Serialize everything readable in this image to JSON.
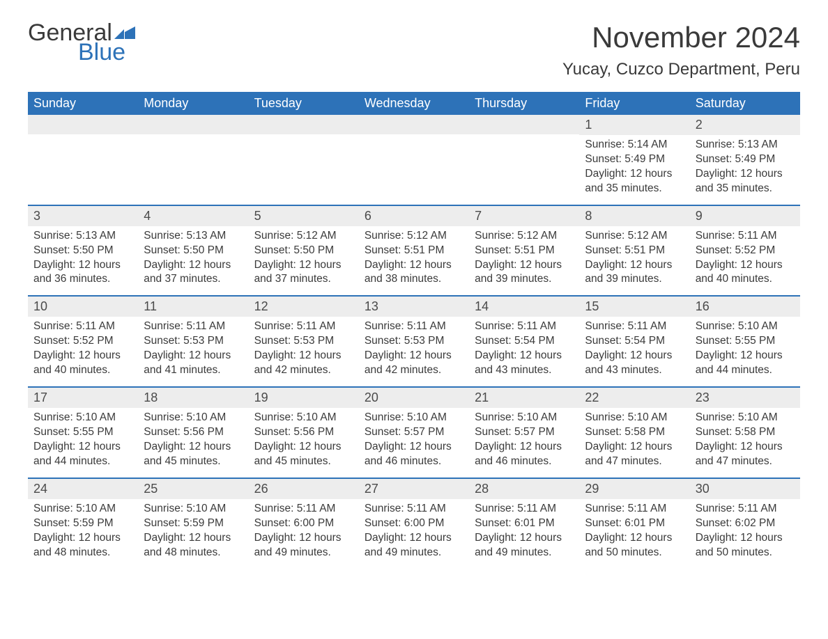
{
  "logo": {
    "text1": "General",
    "text2": "Blue",
    "flag_color": "#2d72b8"
  },
  "title": "November 2024",
  "location": "Yucay, Cuzco Department, Peru",
  "colors": {
    "header_bg": "#2d72b8",
    "header_text": "#ffffff",
    "daynum_bg": "#ededed",
    "week_border": "#2d72b8",
    "text": "#3a3a3a"
  },
  "typography": {
    "title_fontsize": 42,
    "location_fontsize": 24,
    "dayheader_fontsize": 18,
    "daynum_fontsize": 18,
    "info_fontsize": 15.5
  },
  "day_headers": [
    "Sunday",
    "Monday",
    "Tuesday",
    "Wednesday",
    "Thursday",
    "Friday",
    "Saturday"
  ],
  "labels": {
    "sunrise": "Sunrise:",
    "sunset": "Sunset:",
    "daylight": "Daylight:"
  },
  "weeks": [
    [
      {
        "empty": true
      },
      {
        "empty": true
      },
      {
        "empty": true
      },
      {
        "empty": true
      },
      {
        "empty": true
      },
      {
        "day": "1",
        "sunrise": "5:14 AM",
        "sunset": "5:49 PM",
        "daylight": "12 hours and 35 minutes."
      },
      {
        "day": "2",
        "sunrise": "5:13 AM",
        "sunset": "5:49 PM",
        "daylight": "12 hours and 35 minutes."
      }
    ],
    [
      {
        "day": "3",
        "sunrise": "5:13 AM",
        "sunset": "5:50 PM",
        "daylight": "12 hours and 36 minutes."
      },
      {
        "day": "4",
        "sunrise": "5:13 AM",
        "sunset": "5:50 PM",
        "daylight": "12 hours and 37 minutes."
      },
      {
        "day": "5",
        "sunrise": "5:12 AM",
        "sunset": "5:50 PM",
        "daylight": "12 hours and 37 minutes."
      },
      {
        "day": "6",
        "sunrise": "5:12 AM",
        "sunset": "5:51 PM",
        "daylight": "12 hours and 38 minutes."
      },
      {
        "day": "7",
        "sunrise": "5:12 AM",
        "sunset": "5:51 PM",
        "daylight": "12 hours and 39 minutes."
      },
      {
        "day": "8",
        "sunrise": "5:12 AM",
        "sunset": "5:51 PM",
        "daylight": "12 hours and 39 minutes."
      },
      {
        "day": "9",
        "sunrise": "5:11 AM",
        "sunset": "5:52 PM",
        "daylight": "12 hours and 40 minutes."
      }
    ],
    [
      {
        "day": "10",
        "sunrise": "5:11 AM",
        "sunset": "5:52 PM",
        "daylight": "12 hours and 40 minutes."
      },
      {
        "day": "11",
        "sunrise": "5:11 AM",
        "sunset": "5:53 PM",
        "daylight": "12 hours and 41 minutes."
      },
      {
        "day": "12",
        "sunrise": "5:11 AM",
        "sunset": "5:53 PM",
        "daylight": "12 hours and 42 minutes."
      },
      {
        "day": "13",
        "sunrise": "5:11 AM",
        "sunset": "5:53 PM",
        "daylight": "12 hours and 42 minutes."
      },
      {
        "day": "14",
        "sunrise": "5:11 AM",
        "sunset": "5:54 PM",
        "daylight": "12 hours and 43 minutes."
      },
      {
        "day": "15",
        "sunrise": "5:11 AM",
        "sunset": "5:54 PM",
        "daylight": "12 hours and 43 minutes."
      },
      {
        "day": "16",
        "sunrise": "5:10 AM",
        "sunset": "5:55 PM",
        "daylight": "12 hours and 44 minutes."
      }
    ],
    [
      {
        "day": "17",
        "sunrise": "5:10 AM",
        "sunset": "5:55 PM",
        "daylight": "12 hours and 44 minutes."
      },
      {
        "day": "18",
        "sunrise": "5:10 AM",
        "sunset": "5:56 PM",
        "daylight": "12 hours and 45 minutes."
      },
      {
        "day": "19",
        "sunrise": "5:10 AM",
        "sunset": "5:56 PM",
        "daylight": "12 hours and 45 minutes."
      },
      {
        "day": "20",
        "sunrise": "5:10 AM",
        "sunset": "5:57 PM",
        "daylight": "12 hours and 46 minutes."
      },
      {
        "day": "21",
        "sunrise": "5:10 AM",
        "sunset": "5:57 PM",
        "daylight": "12 hours and 46 minutes."
      },
      {
        "day": "22",
        "sunrise": "5:10 AM",
        "sunset": "5:58 PM",
        "daylight": "12 hours and 47 minutes."
      },
      {
        "day": "23",
        "sunrise": "5:10 AM",
        "sunset": "5:58 PM",
        "daylight": "12 hours and 47 minutes."
      }
    ],
    [
      {
        "day": "24",
        "sunrise": "5:10 AM",
        "sunset": "5:59 PM",
        "daylight": "12 hours and 48 minutes."
      },
      {
        "day": "25",
        "sunrise": "5:10 AM",
        "sunset": "5:59 PM",
        "daylight": "12 hours and 48 minutes."
      },
      {
        "day": "26",
        "sunrise": "5:11 AM",
        "sunset": "6:00 PM",
        "daylight": "12 hours and 49 minutes."
      },
      {
        "day": "27",
        "sunrise": "5:11 AM",
        "sunset": "6:00 PM",
        "daylight": "12 hours and 49 minutes."
      },
      {
        "day": "28",
        "sunrise": "5:11 AM",
        "sunset": "6:01 PM",
        "daylight": "12 hours and 49 minutes."
      },
      {
        "day": "29",
        "sunrise": "5:11 AM",
        "sunset": "6:01 PM",
        "daylight": "12 hours and 50 minutes."
      },
      {
        "day": "30",
        "sunrise": "5:11 AM",
        "sunset": "6:02 PM",
        "daylight": "12 hours and 50 minutes."
      }
    ]
  ]
}
